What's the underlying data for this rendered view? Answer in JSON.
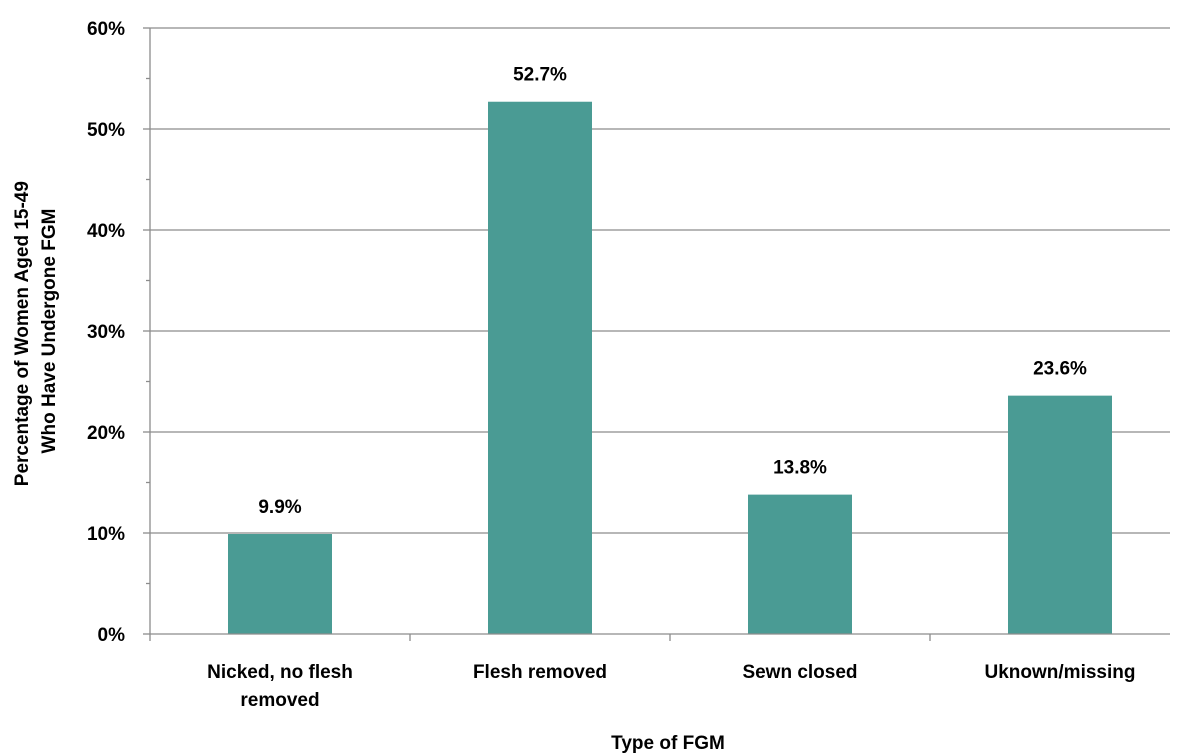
{
  "chart_data": {
    "type": "bar",
    "categories": [
      [
        "Nicked, no flesh",
        "removed"
      ],
      [
        "Flesh removed"
      ],
      [
        "Sewn closed"
      ],
      [
        "Uknown/missing"
      ]
    ],
    "values": [
      9.9,
      52.7,
      13.8,
      23.6
    ],
    "data_labels": [
      "9.9%",
      "52.7%",
      "13.8%",
      "23.6%"
    ],
    "title": "",
    "xlabel": "Type of FGM",
    "ylabel_lines": [
      "Percentage of Women Aged 15-49",
      "Who Have Undergone FGM"
    ],
    "ylim": [
      0,
      60
    ],
    "yticks": [
      0,
      10,
      20,
      30,
      40,
      50,
      60
    ],
    "ytick_labels": [
      "0%",
      "10%",
      "20%",
      "30%",
      "40%",
      "50%",
      "60%"
    ],
    "grid": true,
    "legend": "none",
    "bar_color": "#4a9b94"
  }
}
